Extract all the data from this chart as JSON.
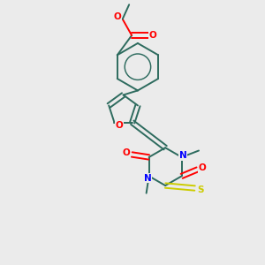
{
  "background_color": "#ebebeb",
  "bond_color": "#2d6b5e",
  "atom_colors": {
    "O": "#ff0000",
    "N": "#0000ff",
    "S": "#cccc00",
    "C": "#2d6b5e"
  },
  "figsize": [
    3.0,
    3.0
  ],
  "dpi": 100
}
